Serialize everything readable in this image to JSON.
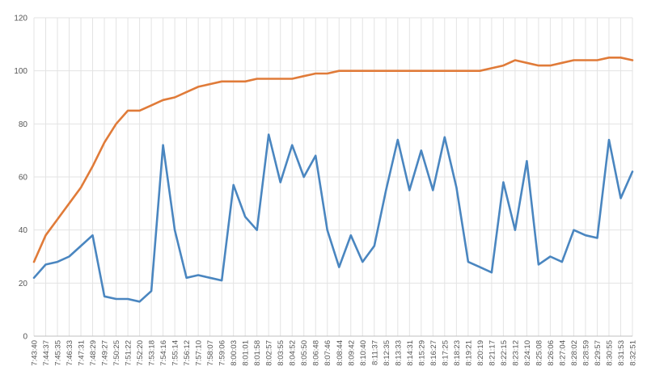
{
  "chart_data": {
    "type": "line",
    "title": "",
    "xlabel": "",
    "ylabel": "",
    "ylim": [
      0,
      120
    ],
    "yticks": [
      0,
      20,
      40,
      60,
      80,
      100,
      120
    ],
    "grid": true,
    "legend": "none",
    "x_tick_labels": [
      "7:43:40",
      "7:44:37",
      "7:45:35",
      "7:46:33",
      "7:47:31",
      "7:48:29",
      "7:49:27",
      "7:50:25",
      "7:51:22",
      "7:52:20",
      "7:53:18",
      "7:54:16",
      "7:55:14",
      "7:56:12",
      "7:57:10",
      "7:58:07",
      "7:59:06",
      "8:00:03",
      "8:01:01",
      "8:01:58",
      "8:02:57",
      "8:03:55",
      "8:04:52",
      "8:05:50",
      "8:06:48",
      "8:07:46",
      "8:08:44",
      "8:09:42",
      "8:10:40",
      "8:11:37",
      "8:12:35",
      "8:13:33",
      "8:14:31",
      "8:15:29",
      "8:16:27",
      "8:17:25",
      "8:18:23",
      "8:19:21",
      "8:20:19",
      "8:21:17",
      "8:22:15",
      "8:23:12",
      "8:24:10",
      "8:25:08",
      "8:26:06",
      "8:27:04",
      "8:28:02",
      "8:28:59",
      "8:29:57",
      "8:30:55",
      "8:31:53",
      "8:32:51"
    ],
    "series": [
      {
        "color": "#e07b39",
        "x": [
          0,
          1,
          2,
          3,
          4,
          5,
          6,
          7,
          8,
          9,
          10,
          11,
          12,
          13,
          14,
          15,
          16,
          17,
          18,
          19,
          20,
          21,
          22,
          23,
          24,
          25,
          26,
          27,
          28,
          29,
          30,
          31,
          32,
          33,
          34,
          35,
          36,
          37,
          38,
          39,
          40,
          41,
          42,
          43,
          44,
          45,
          46,
          47,
          48,
          49,
          50,
          51
        ],
        "values": [
          28,
          38,
          44,
          50,
          56,
          64,
          73,
          80,
          85,
          85,
          87,
          89,
          90,
          92,
          94,
          95,
          96,
          96,
          96,
          97,
          97,
          97,
          97,
          98,
          99,
          99,
          100,
          100,
          100,
          100,
          100,
          100,
          100,
          100,
          100,
          100,
          100,
          100,
          100,
          101,
          102,
          104,
          103,
          102,
          102,
          103,
          104,
          104,
          104,
          105,
          105,
          104
        ]
      },
      {
        "color": "#4a86c0",
        "x": [
          0,
          1,
          2,
          3,
          4,
          5,
          6,
          7,
          8,
          9,
          10,
          11,
          12,
          13,
          14,
          15,
          16,
          17,
          18,
          19,
          20,
          21,
          22,
          23,
          24,
          25,
          26,
          27,
          28,
          29,
          30,
          31,
          32,
          33,
          34,
          35,
          36,
          37,
          38,
          39,
          40,
          41,
          42,
          43,
          44,
          45,
          46,
          47,
          48,
          49,
          50,
          51
        ],
        "values": [
          22,
          27,
          28,
          30,
          34,
          38,
          15,
          14,
          14,
          13,
          17,
          72,
          40,
          22,
          23,
          22,
          21,
          57,
          45,
          40,
          76,
          58,
          72,
          60,
          68,
          40,
          26,
          38,
          28,
          34,
          55,
          74,
          55,
          70,
          55,
          75,
          56,
          28,
          26,
          24,
          58,
          40,
          66,
          27,
          30,
          28,
          40,
          38,
          37,
          74,
          52,
          62
        ]
      }
    ]
  }
}
